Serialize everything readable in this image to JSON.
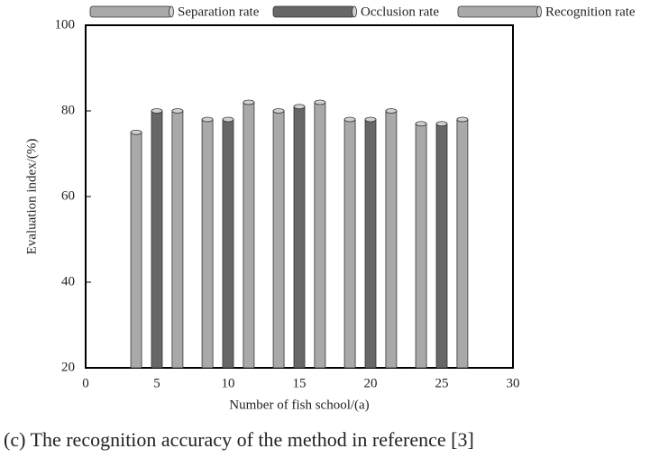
{
  "chart_data": {
    "type": "bar",
    "x_label": "Number of fish school/(a)",
    "y_label": "Evaluation index/(%)",
    "x": [
      5,
      10,
      15,
      20,
      25
    ],
    "series": [
      {
        "name": "Separation rate",
        "color": "#a9a9a9",
        "values": [
          75,
          78,
          80,
          78,
          77
        ]
      },
      {
        "name": "Occlusion rate",
        "color": "#676767",
        "values": [
          80,
          78,
          81,
          78,
          77
        ]
      },
      {
        "name": "Recognition rate",
        "color": "#a9a9a9",
        "values": [
          80,
          82,
          82,
          80,
          78
        ]
      }
    ],
    "xlim": [
      0,
      30
    ],
    "xticks": [
      0,
      5,
      10,
      15,
      20,
      25,
      30
    ],
    "ylim": [
      20,
      100
    ],
    "yticks": [
      20,
      40,
      60,
      80,
      100
    ]
  },
  "caption": "(c) The recognition accuracy of the method in reference [3]"
}
